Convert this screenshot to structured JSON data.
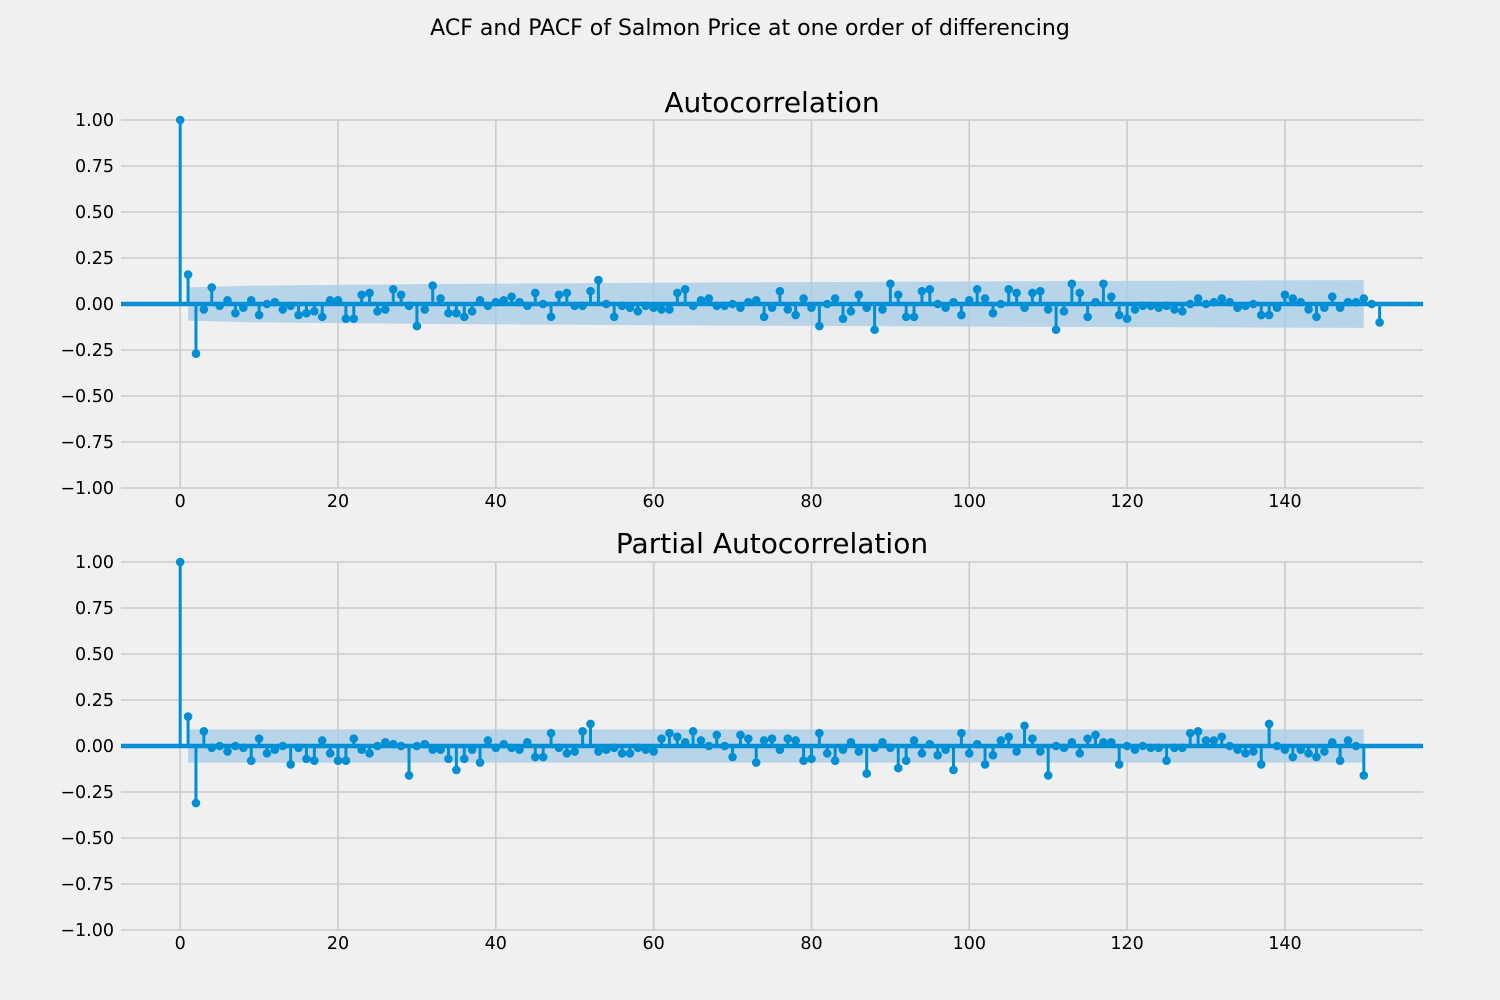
{
  "figure": {
    "suptitle": "ACF and PACF of Salmon Price at one order of differencing",
    "colors": {
      "background": "#f0f0f0",
      "stem": "#008fd5",
      "band": "#a6cbe6",
      "grid": "#cbcbcb"
    }
  },
  "chart_data": [
    {
      "type": "stem",
      "title": "Autocorrelation",
      "xlabel": "",
      "ylabel": "",
      "xlim": [
        -7.5,
        157.5
      ],
      "ylim": [
        -1,
        1
      ],
      "xticks": [
        0,
        20,
        40,
        60,
        80,
        100,
        120,
        140
      ],
      "xtick_labels": [
        "0",
        "20",
        "40",
        "60",
        "80",
        "100",
        "120",
        "140"
      ],
      "yticks": [
        1,
        0.75,
        0.5,
        0.25,
        0,
        -0.25,
        -0.5,
        -0.75,
        -1
      ],
      "ytick_labels": [
        "1.00",
        "0.75",
        "0.50",
        "0.25",
        "0.00",
        "−0.25",
        "−0.50",
        "−0.75",
        "−1.00"
      ],
      "grid": true,
      "lags_start": 0,
      "values": [
        1.0,
        0.16,
        -0.27,
        -0.03,
        0.09,
        -0.01,
        0.02,
        -0.05,
        -0.02,
        0.02,
        -0.06,
        0.0,
        0.01,
        -0.03,
        -0.01,
        -0.06,
        -0.05,
        -0.04,
        -0.07,
        0.02,
        0.02,
        -0.08,
        -0.08,
        0.05,
        0.06,
        -0.04,
        -0.03,
        0.08,
        0.05,
        -0.01,
        -0.12,
        -0.03,
        0.1,
        0.03,
        -0.05,
        -0.05,
        -0.07,
        -0.04,
        0.02,
        -0.01,
        0.01,
        0.02,
        0.04,
        0.01,
        -0.01,
        0.06,
        0.0,
        -0.07,
        0.05,
        0.06,
        -0.01,
        -0.01,
        0.07,
        0.13,
        0.0,
        -0.07,
        -0.01,
        -0.02,
        -0.04,
        -0.01,
        -0.02,
        -0.03,
        -0.03,
        0.06,
        0.08,
        -0.01,
        0.02,
        0.03,
        -0.01,
        -0.01,
        0.0,
        -0.02,
        0.01,
        0.02,
        -0.07,
        -0.02,
        0.07,
        -0.03,
        -0.06,
        0.03,
        -0.02,
        -0.12,
        0.0,
        0.03,
        -0.08,
        -0.04,
        0.05,
        -0.02,
        -0.14,
        -0.03,
        0.11,
        0.05,
        -0.07,
        -0.07,
        0.07,
        0.08,
        0.0,
        -0.02,
        0.01,
        -0.06,
        0.02,
        0.08,
        0.03,
        -0.05,
        0.0,
        0.08,
        0.06,
        -0.02,
        0.06,
        0.07,
        -0.03,
        -0.14,
        -0.04,
        0.11,
        0.06,
        -0.07,
        0.01,
        0.11,
        0.04,
        -0.06,
        -0.08,
        -0.03,
        -0.01,
        -0.01,
        -0.02,
        -0.01,
        -0.03,
        -0.04,
        0.0,
        0.03,
        0.0,
        0.01,
        0.03,
        0.01,
        -0.02,
        -0.01,
        0.0,
        -0.06,
        -0.06,
        -0.02,
        0.05,
        0.03,
        0.01,
        -0.03,
        -0.07,
        -0.02,
        0.04,
        -0.02,
        0.01,
        0.01,
        0.03,
        0.0,
        -0.1
      ],
      "confidence_band": {
        "lags": [
          1,
          150
        ],
        "upper": [
          0.09,
          0.13
        ],
        "lower": [
          -0.09,
          -0.13
        ]
      }
    },
    {
      "type": "stem",
      "title": "Partial Autocorrelation",
      "xlabel": "",
      "ylabel": "",
      "xlim": [
        -7.5,
        157.5
      ],
      "ylim": [
        -1,
        1
      ],
      "xticks": [
        0,
        20,
        40,
        60,
        80,
        100,
        120,
        140
      ],
      "xtick_labels": [
        "0",
        "20",
        "40",
        "60",
        "80",
        "100",
        "120",
        "140"
      ],
      "yticks": [
        1,
        0.75,
        0.5,
        0.25,
        0,
        -0.25,
        -0.5,
        -0.75,
        -1
      ],
      "ytick_labels": [
        "1.00",
        "0.75",
        "0.50",
        "0.25",
        "0.00",
        "−0.25",
        "−0.50",
        "−0.75",
        "−1.00"
      ],
      "grid": true,
      "lags_start": 0,
      "values": [
        1.0,
        0.16,
        -0.31,
        0.08,
        -0.01,
        0.0,
        -0.03,
        0.0,
        -0.01,
        -0.08,
        0.04,
        -0.04,
        -0.02,
        0.0,
        -0.1,
        -0.01,
        -0.07,
        -0.08,
        0.03,
        -0.04,
        -0.08,
        -0.08,
        0.04,
        -0.02,
        -0.04,
        0.0,
        0.02,
        0.01,
        0.0,
        -0.16,
        0.0,
        0.01,
        -0.02,
        -0.02,
        -0.07,
        -0.13,
        -0.07,
        -0.02,
        -0.09,
        0.03,
        -0.01,
        0.01,
        -0.01,
        -0.02,
        0.02,
        -0.06,
        -0.06,
        0.07,
        -0.01,
        -0.04,
        -0.03,
        0.08,
        0.12,
        -0.03,
        -0.02,
        -0.01,
        -0.04,
        -0.04,
        -0.01,
        -0.02,
        -0.03,
        0.04,
        0.07,
        0.05,
        0.02,
        0.08,
        0.03,
        0.0,
        0.06,
        0.0,
        -0.06,
        0.06,
        0.04,
        -0.09,
        0.03,
        0.04,
        -0.02,
        0.04,
        0.03,
        -0.08,
        -0.07,
        0.07,
        -0.04,
        -0.08,
        -0.02,
        0.02,
        -0.03,
        -0.15,
        -0.01,
        0.02,
        -0.01,
        -0.12,
        -0.08,
        0.03,
        -0.04,
        0.01,
        -0.05,
        -0.02,
        -0.13,
        0.07,
        -0.04,
        0.01,
        -0.1,
        -0.05,
        0.03,
        0.05,
        -0.03,
        0.11,
        0.04,
        -0.03,
        -0.16,
        0.0,
        -0.01,
        0.02,
        -0.04,
        0.04,
        0.06,
        0.02,
        0.02,
        -0.1,
        0.0,
        -0.02,
        0.0,
        -0.01,
        -0.01,
        -0.08,
        -0.01,
        -0.01,
        0.07,
        0.08,
        0.03,
        0.03,
        0.05,
        0.0,
        -0.02,
        -0.04,
        -0.03,
        -0.1,
        0.12,
        0.0,
        -0.02,
        -0.06,
        -0.02,
        -0.04,
        -0.06,
        -0.03,
        0.02,
        -0.08,
        0.03,
        0.0,
        -0.16
      ],
      "confidence_band": {
        "lags": [
          1,
          150
        ],
        "upper": [
          0.09,
          0.09
        ],
        "lower": [
          -0.09,
          -0.09
        ]
      }
    }
  ]
}
